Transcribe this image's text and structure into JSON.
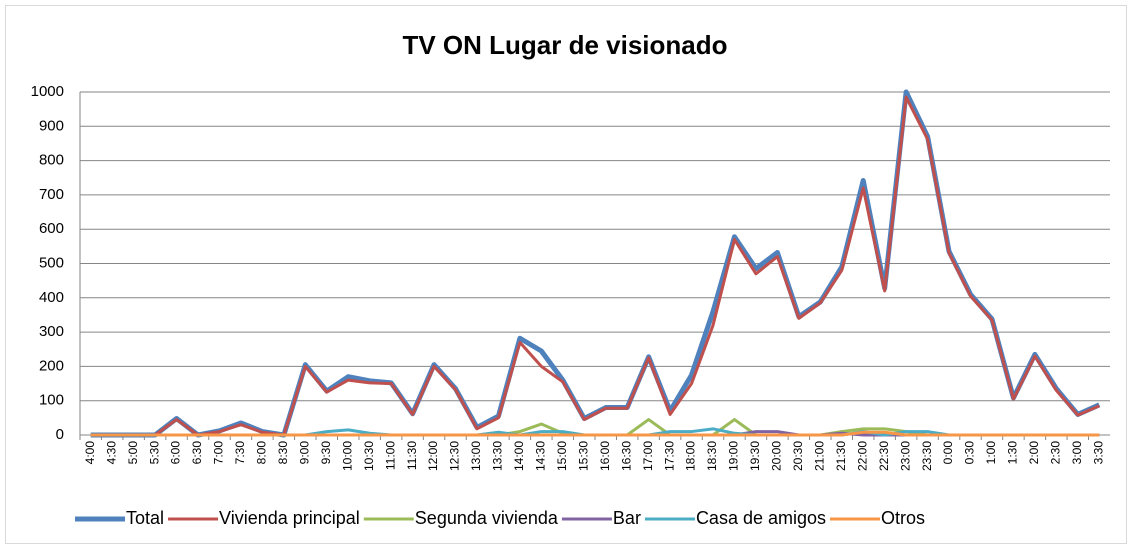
{
  "chart_data": {
    "type": "line",
    "title": "TV ON Lugar de visionado",
    "categories": [
      "4:00",
      "4:30",
      "5:00",
      "5:30",
      "6:00",
      "6:30",
      "7:00",
      "7:30",
      "8:00",
      "8:30",
      "9:00",
      "9:30",
      "10:00",
      "10:30",
      "11:00",
      "11:30",
      "12:00",
      "12:30",
      "13:00",
      "13:30",
      "14:00",
      "14:30",
      "15:00",
      "15:30",
      "16:00",
      "16:30",
      "17:00",
      "17:30",
      "18:00",
      "18:30",
      "19:00",
      "19:30",
      "20:00",
      "20:30",
      "21:00",
      "21:30",
      "22:00",
      "22:30",
      "23:00",
      "23:30",
      "0:00",
      "0:30",
      "1:00",
      "1:30",
      "2:00",
      "2:30",
      "3:00",
      "3:30"
    ],
    "series": [
      {
        "name": "Total",
        "color": "#4f81bd",
        "values": [
          0,
          0,
          0,
          0,
          48,
          0,
          12,
          35,
          10,
          0,
          205,
          128,
          170,
          158,
          152,
          62,
          205,
          135,
          22,
          55,
          282,
          245,
          160,
          48,
          80,
          80,
          228,
          70,
          175,
          360,
          578,
          485,
          532,
          345,
          388,
          490,
          742,
          428,
          1000,
          870,
          535,
          410,
          338,
          108,
          235,
          135,
          60,
          88
        ]
      },
      {
        "name": "Vivienda principal",
        "color": "#c0504d",
        "values": [
          0,
          0,
          0,
          0,
          45,
          0,
          10,
          30,
          8,
          0,
          200,
          125,
          160,
          152,
          150,
          60,
          200,
          132,
          18,
          50,
          270,
          200,
          155,
          45,
          78,
          78,
          225,
          60,
          150,
          320,
          570,
          470,
          520,
          340,
          385,
          480,
          720,
          420,
          985,
          862,
          530,
          405,
          335,
          105,
          230,
          130,
          58,
          85
        ]
      },
      {
        "name": "Segunda vivienda",
        "color": "#9bbb59",
        "values": [
          0,
          0,
          0,
          0,
          0,
          0,
          0,
          0,
          0,
          0,
          0,
          0,
          0,
          0,
          0,
          0,
          0,
          0,
          0,
          0,
          10,
          32,
          5,
          0,
          0,
          0,
          45,
          0,
          0,
          0,
          45,
          0,
          0,
          0,
          0,
          10,
          18,
          18,
          10,
          0,
          0,
          0,
          0,
          0,
          0,
          0,
          0,
          0
        ]
      },
      {
        "name": "Bar",
        "color": "#8064a2",
        "values": [
          0,
          0,
          0,
          0,
          0,
          0,
          0,
          0,
          0,
          0,
          0,
          0,
          0,
          0,
          0,
          0,
          0,
          0,
          0,
          0,
          0,
          0,
          0,
          0,
          0,
          0,
          0,
          0,
          0,
          0,
          0,
          10,
          10,
          0,
          0,
          5,
          0,
          0,
          0,
          0,
          0,
          0,
          0,
          0,
          0,
          0,
          0,
          0
        ]
      },
      {
        "name": "Casa de amigos",
        "color": "#4bacc6",
        "values": [
          0,
          0,
          0,
          0,
          0,
          0,
          0,
          0,
          0,
          0,
          0,
          10,
          15,
          5,
          0,
          0,
          0,
          0,
          0,
          8,
          0,
          10,
          10,
          0,
          0,
          0,
          0,
          10,
          10,
          18,
          5,
          0,
          0,
          0,
          0,
          0,
          10,
          0,
          10,
          10,
          0,
          0,
          0,
          0,
          0,
          0,
          0,
          0
        ]
      },
      {
        "name": "Otros",
        "color": "#f79646",
        "values": [
          0,
          0,
          0,
          0,
          0,
          0,
          0,
          0,
          0,
          0,
          0,
          0,
          0,
          0,
          0,
          0,
          0,
          0,
          0,
          0,
          0,
          0,
          0,
          0,
          0,
          0,
          0,
          0,
          0,
          0,
          0,
          0,
          0,
          0,
          0,
          0,
          8,
          8,
          0,
          0,
          0,
          0,
          0,
          0,
          0,
          0,
          0,
          0
        ]
      }
    ],
    "ylim": [
      0,
      1000
    ],
    "yticks": [
      0,
      100,
      200,
      300,
      400,
      500,
      600,
      700,
      800,
      900,
      1000
    ],
    "grid": true,
    "legend": "bottom"
  }
}
